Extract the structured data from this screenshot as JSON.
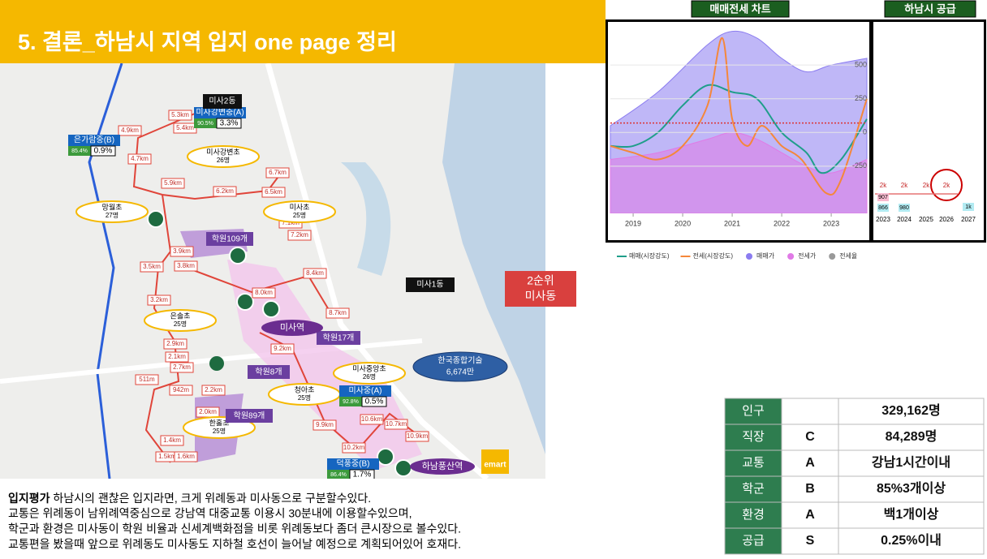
{
  "header": {
    "title": "5. 결론_하남시 지역 입지 one page 정리"
  },
  "map": {
    "distances": [
      "4.9km",
      "5.3km",
      "5.4km",
      "4.7km",
      "5.9km",
      "6.2km",
      "6.7km",
      "6.5km",
      "7.1km",
      "7.2km",
      "3.9km",
      "3.5km",
      "3.8km",
      "8.4km",
      "8.0km",
      "8.7km",
      "3.2km",
      "2.9km",
      "9.2km",
      "2.7km",
      "2.1km",
      "511m",
      "942m",
      "2.2km",
      "2.0km",
      "1.4km",
      "1.5km",
      "1.6km",
      "9.9km",
      "10.6km",
      "10.7km",
      "10.9km",
      "10.2km"
    ],
    "schools": [
      {
        "name": "미사강변초",
        "count": "26명"
      },
      {
        "name": "망월초",
        "count": "27명"
      },
      {
        "name": "미사초",
        "count": "25명"
      },
      {
        "name": "은솔초",
        "count": "25명"
      },
      {
        "name": "미사중앙초",
        "count": "26명"
      },
      {
        "name": "청아초",
        "count": "25명"
      },
      {
        "name": "한홀초",
        "count": "25명"
      }
    ],
    "middle_schools": [
      {
        "name": "은가람중(B)",
        "rate": "85.4%",
        "share": "0.9%"
      },
      {
        "name": "미사강변중(A)",
        "rate": "90.5%",
        "share": "3.3%"
      },
      {
        "name": "미사중(A)",
        "rate": "92.8%",
        "share": "0.5%"
      },
      {
        "name": "덕풍중(B)",
        "rate": "86.4%",
        "share": "1.7%"
      }
    ],
    "academies": [
      "학원109개",
      "학원17개",
      "학원8개",
      "학원89개"
    ],
    "stations": [
      "미사역",
      "하남풍산역"
    ],
    "dongs": [
      "미사2동",
      "미사1동"
    ],
    "company": {
      "name": "한국종합기술",
      "amount": "6,674만"
    },
    "mart": "emart"
  },
  "badge": {
    "rank": "2순위",
    "area": "미사동"
  },
  "chart": {
    "tab": "매매전세 차트",
    "xlim": [
      2018.54,
      2023.72
    ],
    "ylim": [
      -600,
      820
    ],
    "xticks": [
      2019,
      2020,
      2021,
      2022,
      2023
    ],
    "yticks": [
      500,
      250,
      0,
      -250
    ],
    "reference_line": {
      "value": 70,
      "color": "#d33"
    },
    "series": [
      {
        "name": "매매가",
        "color": "#8b7cf0",
        "kind": "area",
        "x": [
          2018.54,
          2019.5,
          2020.5,
          2021,
          2021.5,
          2022,
          2022.5,
          2023,
          2023.72
        ],
        "values": [
          50,
          300,
          650,
          750,
          700,
          550,
          450,
          500,
          550
        ]
      },
      {
        "name": "전세가",
        "color": "#e07ae6",
        "kind": "area",
        "x": [
          2018.54,
          2019.5,
          2020.5,
          2021,
          2021.5,
          2022,
          2022.5,
          2023,
          2023.72
        ],
        "values": [
          -200,
          -150,
          -50,
          0,
          -50,
          -150,
          -250,
          -300,
          -200
        ]
      },
      {
        "name": "매매(시장강도)",
        "color": "#1f9e8a",
        "kind": "line",
        "x": [
          2018.54,
          2019,
          2019.5,
          2020,
          2020.5,
          2021,
          2021.5,
          2022,
          2022.5,
          2022.8,
          2023.2,
          2023.72
        ],
        "values": [
          -100,
          -100,
          0,
          200,
          350,
          300,
          250,
          0,
          -150,
          -300,
          -200,
          100
        ]
      },
      {
        "name": "전세(시장강도)",
        "color": "#f5873a",
        "kind": "line",
        "x": [
          2018.54,
          2019,
          2019.5,
          2020,
          2020.5,
          2020.8,
          2021,
          2021.3,
          2021.6,
          2022,
          2022.4,
          2022.9,
          2023.2,
          2023.72
        ],
        "values": [
          -100,
          -150,
          -200,
          -100,
          200,
          700,
          100,
          -100,
          50,
          -100,
          -200,
          -450,
          -350,
          250
        ]
      }
    ],
    "legend_extra": {
      "name": "전세율",
      "color": "#999"
    }
  },
  "supply": {
    "tab": "하남시 공급",
    "years": [
      "2023",
      "2024",
      "2025",
      "2026",
      "2027"
    ],
    "top_labels": [
      "2k",
      "2k",
      "2k",
      "2k"
    ],
    "bar_labels": [
      "907",
      "866",
      "980",
      "1k"
    ]
  },
  "table": {
    "rows": [
      [
        "인구",
        null,
        "329,162명"
      ],
      [
        "직장",
        "C",
        "84,289명"
      ],
      [
        "교통",
        "A",
        "강남1시간이내"
      ],
      [
        "학군",
        "B",
        "85%3개이상"
      ],
      [
        "환경",
        "A",
        "백1개이상"
      ],
      [
        "공급",
        "S",
        "0.25%이내"
      ]
    ]
  },
  "summary": {
    "lead": "입지평가",
    "first": " 하남시의 괜찮은 입지라면,   크게 위례동과 미사동으로 구분할수있다.",
    "lines": [
      "교통은 위례동이 남위례역중심으로 강남역 대중교통 이용시 30분내에 이용할수있으며,",
      "학군과 환경은 미사동이 학원 비율과 신세계백화점을 비롯 위례동보다 좀더 큰시장으로 볼수있다.",
      "교통편을 봤을때 앞으로 위례동도 미사동도  지하철 호선이 늘어날 예정으로 계획되어있어 호재다."
    ]
  }
}
